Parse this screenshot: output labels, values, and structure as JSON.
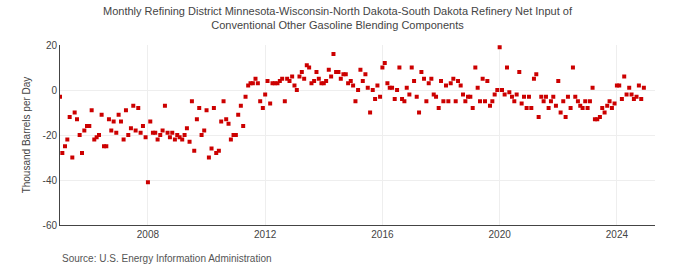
{
  "chart_data": {
    "type": "scatter",
    "title": "Monthly Refining District Minnesota-Wisconsin-North Dakota-South Dakota Refinery Net Input of\nConventional Other Gasoline Blending Components",
    "ylabel": "Thousand Barrels per Day",
    "annotations": [
      "Source: U.S. Energy Information Administration"
    ],
    "color": "#cc0000",
    "marker": "square",
    "grid": true,
    "xlim": [
      2005.0,
      2025.3
    ],
    "xticks": [
      2008,
      2012,
      2016,
      2020,
      2024
    ],
    "ylim": [
      -60,
      20
    ],
    "yticks": [
      -60,
      -40,
      -20,
      0,
      20
    ],
    "x": [
      2005.0,
      2005.08,
      2005.17,
      2005.25,
      2005.33,
      2005.42,
      2005.5,
      2005.58,
      2005.67,
      2005.75,
      2005.83,
      2005.92,
      2006.0,
      2006.08,
      2006.17,
      2006.25,
      2006.33,
      2006.42,
      2006.5,
      2006.58,
      2006.67,
      2006.75,
      2006.83,
      2006.92,
      2007.0,
      2007.08,
      2007.17,
      2007.25,
      2007.33,
      2007.42,
      2007.5,
      2007.58,
      2007.67,
      2007.75,
      2007.83,
      2007.92,
      2008.0,
      2008.08,
      2008.17,
      2008.25,
      2008.33,
      2008.42,
      2008.5,
      2008.58,
      2008.67,
      2008.75,
      2008.83,
      2008.92,
      2009.0,
      2009.08,
      2009.17,
      2009.25,
      2009.33,
      2009.42,
      2009.5,
      2009.58,
      2009.67,
      2009.75,
      2009.83,
      2009.92,
      2010.0,
      2010.08,
      2010.17,
      2010.25,
      2010.33,
      2010.42,
      2010.5,
      2010.58,
      2010.67,
      2010.75,
      2010.83,
      2010.92,
      2011.0,
      2011.08,
      2011.17,
      2011.25,
      2011.33,
      2011.42,
      2011.5,
      2011.58,
      2011.67,
      2011.75,
      2011.83,
      2011.92,
      2012.0,
      2012.08,
      2012.17,
      2012.25,
      2012.33,
      2012.42,
      2012.5,
      2012.58,
      2012.67,
      2012.75,
      2012.83,
      2012.92,
      2013.0,
      2013.08,
      2013.17,
      2013.25,
      2013.33,
      2013.42,
      2013.5,
      2013.58,
      2013.67,
      2013.75,
      2013.83,
      2013.92,
      2014.0,
      2014.08,
      2014.17,
      2014.25,
      2014.33,
      2014.42,
      2014.5,
      2014.58,
      2014.67,
      2014.75,
      2014.83,
      2014.92,
      2015.0,
      2015.08,
      2015.17,
      2015.25,
      2015.33,
      2015.42,
      2015.5,
      2015.58,
      2015.67,
      2015.75,
      2015.83,
      2015.92,
      2016.0,
      2016.08,
      2016.17,
      2016.25,
      2016.33,
      2016.42,
      2016.5,
      2016.58,
      2016.67,
      2016.75,
      2016.83,
      2016.92,
      2017.0,
      2017.08,
      2017.17,
      2017.25,
      2017.33,
      2017.42,
      2017.5,
      2017.58,
      2017.67,
      2017.75,
      2017.83,
      2017.92,
      2018.0,
      2018.08,
      2018.17,
      2018.25,
      2018.33,
      2018.42,
      2018.5,
      2018.58,
      2018.67,
      2018.75,
      2018.83,
      2018.92,
      2019.0,
      2019.08,
      2019.17,
      2019.25,
      2019.33,
      2019.42,
      2019.5,
      2019.58,
      2019.67,
      2019.75,
      2019.83,
      2019.92,
      2020.0,
      2020.08,
      2020.17,
      2020.25,
      2020.33,
      2020.42,
      2020.5,
      2020.58,
      2020.67,
      2020.75,
      2020.83,
      2020.92,
      2021.0,
      2021.08,
      2021.17,
      2021.25,
      2021.33,
      2021.42,
      2021.5,
      2021.58,
      2021.67,
      2021.75,
      2021.83,
      2021.92,
      2022.0,
      2022.08,
      2022.17,
      2022.25,
      2022.33,
      2022.42,
      2022.5,
      2022.58,
      2022.67,
      2022.75,
      2022.83,
      2022.92,
      2023.0,
      2023.08,
      2023.17,
      2023.25,
      2023.33,
      2023.42,
      2023.5,
      2023.58,
      2023.67,
      2023.75,
      2023.83,
      2023.92,
      2024.0,
      2024.08,
      2024.17,
      2024.25,
      2024.33,
      2024.42,
      2024.5,
      2024.58,
      2024.67,
      2024.75,
      2024.83,
      2024.92
    ],
    "values": [
      -3.0,
      -28.0,
      -25.0,
      -22.0,
      -12.0,
      -30.0,
      -10.0,
      -13.0,
      -20.0,
      -28.0,
      -18.0,
      -16.0,
      -16.0,
      -9.0,
      -22.0,
      -21.0,
      -20.0,
      -11.0,
      -25.0,
      -25.0,
      -13.0,
      -18.0,
      -14.0,
      -19.0,
      -11.0,
      -14.0,
      -22.0,
      -9.0,
      -20.0,
      -17.0,
      -7.0,
      -18.0,
      -8.0,
      -19.0,
      -16.0,
      -21.0,
      -41.0,
      -14.0,
      -19.0,
      -19.0,
      -22.0,
      -20.0,
      -18.0,
      -7.0,
      -19.0,
      -21.0,
      -19.0,
      -22.0,
      -20.0,
      -21.0,
      -22.0,
      -20.0,
      -17.0,
      -23.0,
      -5.0,
      -27.0,
      -13.0,
      -8.0,
      -20.0,
      -18.0,
      -9.0,
      -30.0,
      -26.0,
      -8.0,
      -28.0,
      -27.0,
      -14.0,
      -5.0,
      -13.0,
      -15.0,
      -22.0,
      -20.0,
      -20.0,
      -11.0,
      -7.0,
      -16.0,
      -3.0,
      2.0,
      3.0,
      3.0,
      5.0,
      3.0,
      -5.0,
      -8.0,
      -2.0,
      4.0,
      -6.0,
      3.0,
      3.0,
      3.0,
      4.0,
      5.0,
      -5.0,
      5.0,
      4.0,
      6.0,
      2.0,
      0.0,
      6.0,
      8.0,
      5.0,
      11.0,
      10.0,
      3.0,
      4.0,
      8.0,
      5.0,
      3.0,
      3.0,
      4.0,
      9.0,
      6.0,
      16.0,
      8.0,
      8.0,
      5.0,
      7.0,
      7.0,
      3.0,
      4.0,
      2.0,
      -5.0,
      0.0,
      9.0,
      4.0,
      7.0,
      1.0,
      -10.0,
      0.0,
      -4.0,
      2.0,
      -3.0,
      10.0,
      12.0,
      3.0,
      1.0,
      1.0,
      -4.0,
      0.0,
      10.0,
      -4.0,
      -5.0,
      1.0,
      -2.0,
      10.0,
      4.0,
      -3.0,
      -10.0,
      8.0,
      5.0,
      -5.0,
      3.0,
      5.0,
      -2.0,
      -3.0,
      -8.0,
      4.0,
      -5.0,
      2.0,
      -5.0,
      3.0,
      5.0,
      -5.0,
      4.0,
      2.0,
      -2.0,
      -5.0,
      -3.0,
      -3.0,
      -8.0,
      10.0,
      1.0,
      -5.0,
      5.0,
      -5.0,
      4.0,
      -7.0,
      -5.0,
      -2.0,
      0.0,
      19.0,
      0.0,
      -2.0,
      10.0,
      -1.0,
      -3.0,
      -5.0,
      -2.0,
      8.0,
      -6.0,
      -3.0,
      -8.0,
      -3.0,
      -8.0,
      5.0,
      7.0,
      -12.0,
      -3.0,
      -5.0,
      -3.0,
      -8.0,
      -5.0,
      -3.0,
      -7.0,
      4.0,
      -10.0,
      -5.0,
      -12.0,
      -3.0,
      -8.0,
      10.0,
      -3.0,
      -5.0,
      -7.0,
      -8.0,
      -5.0,
      -8.0,
      -5.0,
      1.0,
      -13.0,
      -13.0,
      -12.0,
      -8.0,
      -10.0,
      -7.0,
      -5.0,
      -8.0,
      -6.0,
      2.0,
      2.0,
      -4.0,
      6.0,
      -2.0,
      1.0,
      -2.0,
      -4.0,
      -3.0,
      2.0,
      -4.0,
      1.0
    ]
  }
}
